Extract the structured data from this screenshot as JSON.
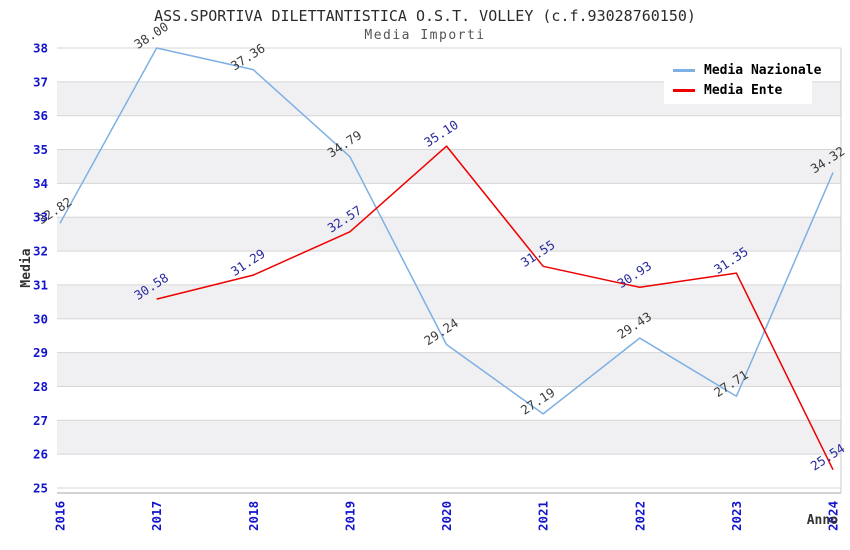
{
  "chart_data": {
    "type": "line",
    "title": "ASS.SPORTIVA DILETTANTISTICA O.S.T. VOLLEY (c.f.93028760150)",
    "subtitle": "Media Importi",
    "x": [
      2016,
      2017,
      2018,
      2019,
      2020,
      2021,
      2022,
      2023,
      2024
    ],
    "series": [
      {
        "name": "Media Nazionale",
        "color": "#7db0e3",
        "label_color": "#3c3c3c",
        "values": [
          32.82,
          38.0,
          37.36,
          34.79,
          29.24,
          27.19,
          29.43,
          27.71,
          34.32
        ]
      },
      {
        "name": "Media Ente",
        "color": "#ee0000",
        "label_color": "#2a2a9e",
        "values": [
          null,
          30.58,
          31.29,
          32.57,
          35.1,
          31.55,
          30.93,
          31.35,
          25.54
        ]
      }
    ],
    "xlabel": "Anno",
    "ylabel": "Media",
    "ylim": [
      25,
      38
    ],
    "yticks": [
      25,
      26,
      27,
      28,
      29,
      30,
      31,
      32,
      33,
      34,
      35,
      36,
      37,
      38
    ],
    "grid": true,
    "legend_position": "top-right",
    "point_labels_decimals": 2,
    "colors": {
      "tick_label": "#1414cc",
      "band_gray": "#f0f0f2",
      "gridline": "#d6d6d6",
      "axis_line": "#a6a6a6",
      "plot_border": "#cccccc",
      "axis_title": "#333333",
      "title_text": "#2b2b2b",
      "subtitle_text": "#555555"
    }
  }
}
